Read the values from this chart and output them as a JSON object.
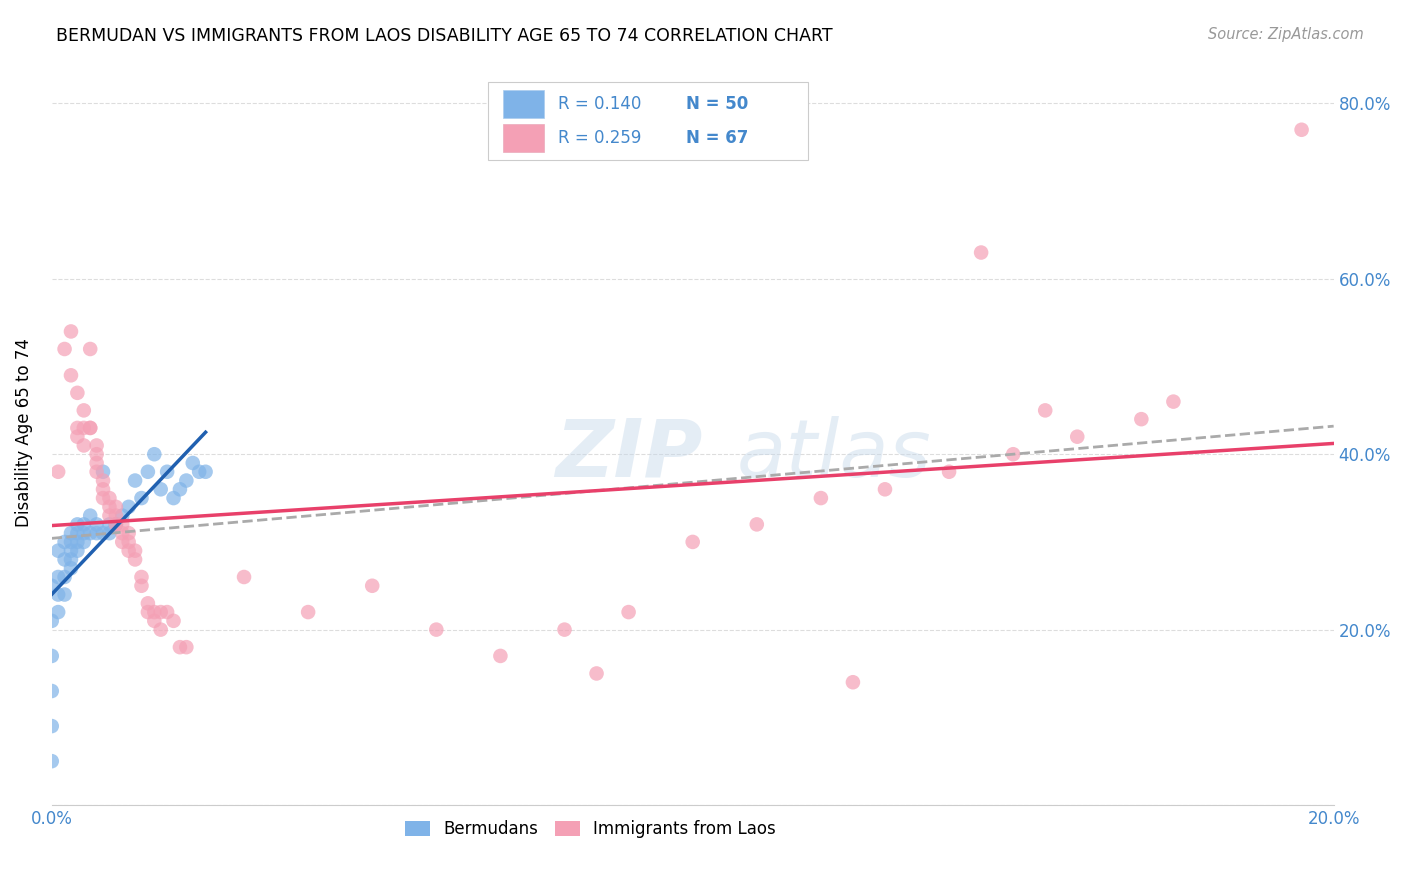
{
  "title": "BERMUDAN VS IMMIGRANTS FROM LAOS DISABILITY AGE 65 TO 74 CORRELATION CHART",
  "source": "Source: ZipAtlas.com",
  "ylabel": "Disability Age 65 to 74",
  "xlim": [
    0.0,
    0.2
  ],
  "ylim": [
    0.0,
    0.85
  ],
  "bermuda_color": "#7fb3e8",
  "laos_color": "#f4a0b5",
  "bermuda_line_color": "#2060b0",
  "laos_line_color": "#e8406a",
  "trendline_color": "#aaaaaa",
  "bermuda_x": [
    0.0,
    0.0,
    0.0,
    0.0,
    0.0,
    0.0,
    0.001,
    0.001,
    0.001,
    0.001,
    0.002,
    0.002,
    0.002,
    0.002,
    0.003,
    0.003,
    0.003,
    0.003,
    0.003,
    0.004,
    0.004,
    0.004,
    0.004,
    0.005,
    0.005,
    0.005,
    0.006,
    0.006,
    0.007,
    0.007,
    0.008,
    0.008,
    0.009,
    0.009,
    0.01,
    0.01,
    0.011,
    0.012,
    0.013,
    0.014,
    0.015,
    0.016,
    0.017,
    0.018,
    0.019,
    0.02,
    0.021,
    0.022,
    0.023,
    0.024
  ],
  "bermuda_y": [
    0.25,
    0.21,
    0.17,
    0.13,
    0.09,
    0.05,
    0.29,
    0.26,
    0.24,
    0.22,
    0.3,
    0.28,
    0.26,
    0.24,
    0.31,
    0.3,
    0.29,
    0.28,
    0.27,
    0.32,
    0.31,
    0.3,
    0.29,
    0.32,
    0.31,
    0.3,
    0.33,
    0.31,
    0.32,
    0.31,
    0.38,
    0.31,
    0.32,
    0.31,
    0.32,
    0.32,
    0.33,
    0.34,
    0.37,
    0.35,
    0.38,
    0.4,
    0.36,
    0.38,
    0.35,
    0.36,
    0.37,
    0.39,
    0.38,
    0.38
  ],
  "laos_x": [
    0.001,
    0.002,
    0.003,
    0.003,
    0.004,
    0.004,
    0.004,
    0.005,
    0.005,
    0.005,
    0.006,
    0.006,
    0.006,
    0.007,
    0.007,
    0.007,
    0.007,
    0.008,
    0.008,
    0.008,
    0.009,
    0.009,
    0.009,
    0.01,
    0.01,
    0.01,
    0.011,
    0.011,
    0.011,
    0.012,
    0.012,
    0.012,
    0.013,
    0.013,
    0.014,
    0.014,
    0.015,
    0.015,
    0.016,
    0.016,
    0.017,
    0.017,
    0.018,
    0.019,
    0.02,
    0.021,
    0.03,
    0.04,
    0.05,
    0.06,
    0.07,
    0.08,
    0.085,
    0.09,
    0.1,
    0.11,
    0.12,
    0.125,
    0.13,
    0.14,
    0.145,
    0.15,
    0.155,
    0.16,
    0.17,
    0.175,
    0.195
  ],
  "laos_y": [
    0.38,
    0.52,
    0.49,
    0.54,
    0.42,
    0.43,
    0.47,
    0.45,
    0.41,
    0.43,
    0.43,
    0.43,
    0.52,
    0.41,
    0.4,
    0.38,
    0.39,
    0.35,
    0.36,
    0.37,
    0.34,
    0.33,
    0.35,
    0.33,
    0.34,
    0.32,
    0.31,
    0.3,
    0.32,
    0.3,
    0.29,
    0.31,
    0.29,
    0.28,
    0.25,
    0.26,
    0.22,
    0.23,
    0.22,
    0.21,
    0.2,
    0.22,
    0.22,
    0.21,
    0.18,
    0.18,
    0.26,
    0.22,
    0.25,
    0.2,
    0.17,
    0.2,
    0.15,
    0.22,
    0.3,
    0.32,
    0.35,
    0.14,
    0.36,
    0.38,
    0.63,
    0.4,
    0.45,
    0.42,
    0.44,
    0.46,
    0.77
  ],
  "grid_color": "#dddddd"
}
